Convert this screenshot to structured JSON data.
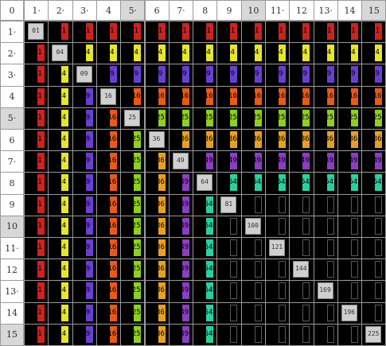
{
  "corner_label": "0",
  "column_headers": [
    "1·",
    "2·",
    "3·",
    "4",
    "5·",
    "6",
    "7·",
    "8",
    "9",
    "10",
    "11·",
    "12",
    "13·",
    "14",
    "15"
  ],
  "row_headers": [
    "1·",
    "2·",
    "3·",
    "4",
    "5·",
    "6",
    "7·",
    "8",
    "9",
    "10",
    "11·",
    "12",
    "13·",
    "14",
    "15"
  ],
  "highlighted_headers": [
    5,
    10,
    15
  ],
  "squares": {
    "1": {
      "label": "1",
      "color": "#cc2222"
    },
    "4": {
      "label": "4",
      "color": "#e6e62a"
    },
    "9": {
      "label": "9",
      "color": "#6a3fd0"
    },
    "16": {
      "label": "16",
      "color": "#e85a1a"
    },
    "25": {
      "label": "25",
      "color": "#8fcf1f"
    },
    "36": {
      "label": "36",
      "color": "#e8a020"
    },
    "49": {
      "label": "49",
      "color": "#8a3fc0"
    },
    "64": {
      "label": "64",
      "color": "#2ad0a0"
    }
  },
  "diagonal_labels": [
    "01",
    "04",
    "09",
    "16",
    "25",
    "36",
    "49",
    "64",
    "81",
    "100",
    "121",
    "144",
    "169",
    "196",
    "225"
  ]
}
